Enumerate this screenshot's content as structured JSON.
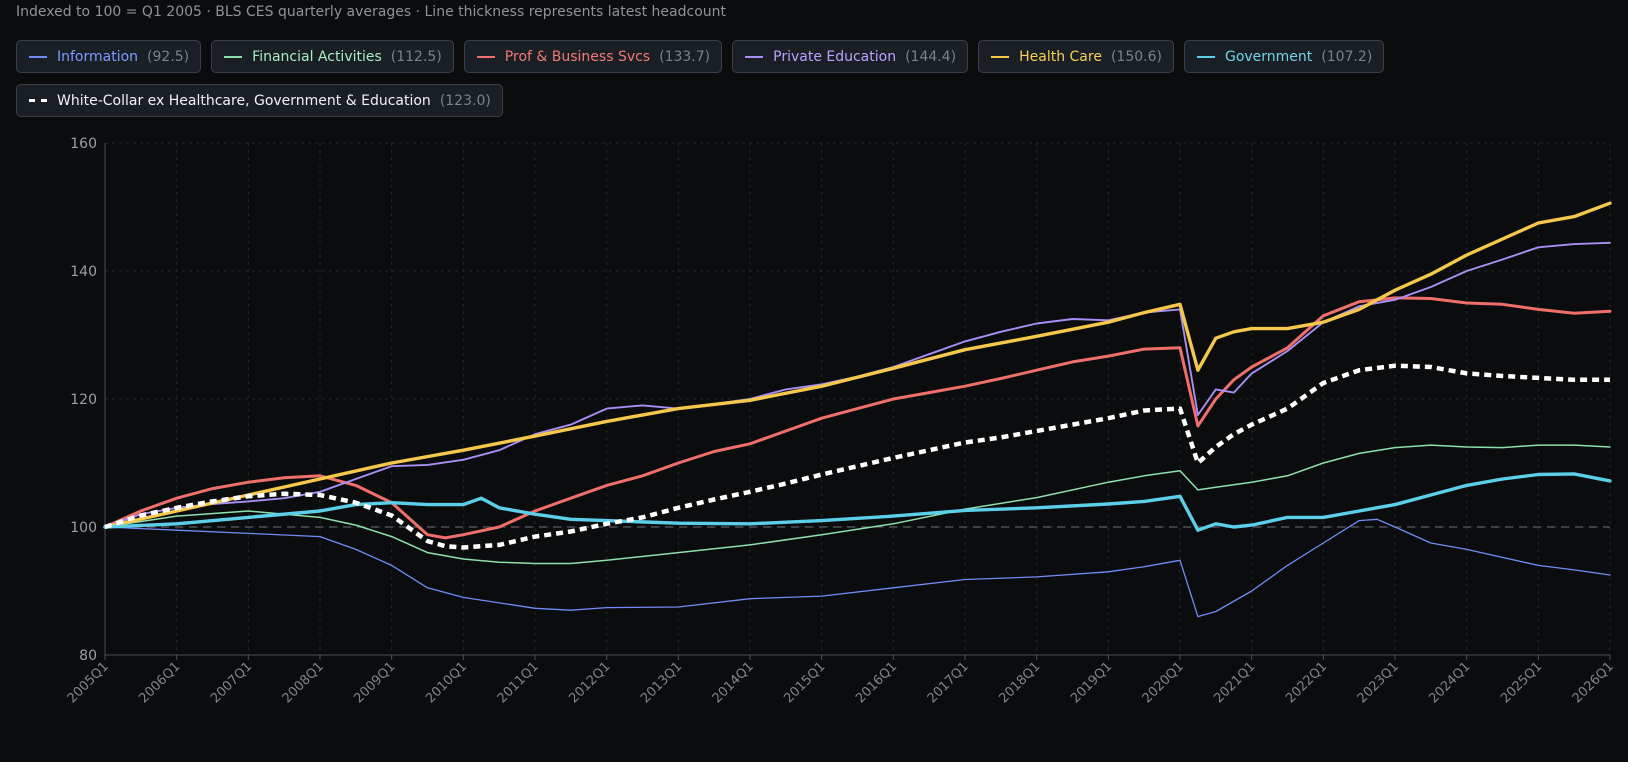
{
  "subtitle": "Indexed to 100 = Q1 2005 · BLS CES quarterly averages · Line thickness represents latest headcount",
  "legend": [
    {
      "label": "Information",
      "value": "(92.5)",
      "color": "#6f8df5",
      "dashed": false,
      "text_color": "#7d9bff"
    },
    {
      "label": "Financial Activities",
      "value": "(112.5)",
      "color": "#8ee0ad",
      "dashed": false,
      "text_color": "#a8ecc3"
    },
    {
      "label": "Prof & Business Svcs",
      "value": "(133.7)",
      "color": "#ef6f6a",
      "dashed": false,
      "text_color": "#f27a73"
    },
    {
      "label": "Private Education",
      "value": "(144.4)",
      "color": "#a88ef5",
      "dashed": false,
      "text_color": "#b9a3ff"
    },
    {
      "label": "Health Care",
      "value": "(150.6)",
      "color": "#f5c84c",
      "dashed": false,
      "text_color": "#f7cf52"
    },
    {
      "label": "Government",
      "value": "(107.2)",
      "color": "#5ccfe8",
      "dashed": false,
      "text_color": "#6fd5ec"
    },
    {
      "label": "White-Collar ex Healthcare, Government & Education",
      "value": "(123.0)",
      "color": "#ffffff",
      "dashed": true,
      "text_color": "#f0f2f5"
    }
  ],
  "chart_data": {
    "type": "line",
    "subtitle": "Indexed to 100 = Q1 2005 · BLS CES quarterly averages · Line thickness represents latest headcount",
    "ylim": [
      80,
      160
    ],
    "yticks": [
      80,
      100,
      120,
      140,
      160
    ],
    "xlim": [
      2005,
      2026
    ],
    "xticks": [
      "2005Q1",
      "2006Q1",
      "2007Q1",
      "2008Q1",
      "2009Q1",
      "2010Q1",
      "2011Q1",
      "2012Q1",
      "2013Q1",
      "2014Q1",
      "2015Q1",
      "2016Q1",
      "2017Q1",
      "2018Q1",
      "2019Q1",
      "2020Q1",
      "2021Q1",
      "2022Q1",
      "2023Q1",
      "2024Q1",
      "2025Q1",
      "2026Q1"
    ],
    "reference_line": 100,
    "grid": true,
    "series": [
      {
        "name": "Information",
        "color": "#6f8df5",
        "width": 1.3,
        "dashed": false,
        "points": [
          [
            2005,
            100
          ],
          [
            2006,
            99.5
          ],
          [
            2007,
            99
          ],
          [
            2008,
            98.5
          ],
          [
            2008.5,
            96.5
          ],
          [
            2009,
            94
          ],
          [
            2009.5,
            90.5
          ],
          [
            2010,
            89
          ],
          [
            2011,
            87.3
          ],
          [
            2011.5,
            87
          ],
          [
            2012,
            87.4
          ],
          [
            2013,
            87.5
          ],
          [
            2014,
            88.8
          ],
          [
            2015,
            89.2
          ],
          [
            2016,
            90.5
          ],
          [
            2017,
            91.8
          ],
          [
            2018,
            92.2
          ],
          [
            2019,
            93
          ],
          [
            2019.5,
            93.8
          ],
          [
            2020,
            94.8
          ],
          [
            2020.25,
            86
          ],
          [
            2020.5,
            86.8
          ],
          [
            2021,
            90
          ],
          [
            2021.5,
            94
          ],
          [
            2022,
            97.5
          ],
          [
            2022.5,
            101
          ],
          [
            2022.75,
            101.2
          ],
          [
            2023,
            100
          ],
          [
            2023.5,
            97.5
          ],
          [
            2024,
            96.5
          ],
          [
            2025,
            94
          ],
          [
            2025.5,
            93.3
          ],
          [
            2026,
            92.5
          ]
        ]
      },
      {
        "name": "Financial Activities",
        "color": "#8ee0ad",
        "width": 1.5,
        "dashed": false,
        "points": [
          [
            2005,
            100
          ],
          [
            2006,
            101.7
          ],
          [
            2007,
            102.5
          ],
          [
            2008,
            101.5
          ],
          [
            2008.5,
            100.3
          ],
          [
            2009,
            98.5
          ],
          [
            2009.5,
            96
          ],
          [
            2010,
            95
          ],
          [
            2010.5,
            94.5
          ],
          [
            2011,
            94.3
          ],
          [
            2011.5,
            94.3
          ],
          [
            2012,
            94.8
          ],
          [
            2013,
            96
          ],
          [
            2014,
            97.2
          ],
          [
            2015,
            98.8
          ],
          [
            2016,
            100.5
          ],
          [
            2017,
            102.8
          ],
          [
            2018,
            104.6
          ],
          [
            2019,
            107
          ],
          [
            2019.5,
            108
          ],
          [
            2020,
            108.8
          ],
          [
            2020.25,
            105.8
          ],
          [
            2020.5,
            106.2
          ],
          [
            2021,
            107
          ],
          [
            2021.5,
            108
          ],
          [
            2022,
            110
          ],
          [
            2022.5,
            111.5
          ],
          [
            2023,
            112.4
          ],
          [
            2023.5,
            112.8
          ],
          [
            2024,
            112.5
          ],
          [
            2024.5,
            112.4
          ],
          [
            2025,
            112.8
          ],
          [
            2025.5,
            112.8
          ],
          [
            2026,
            112.5
          ]
        ]
      },
      {
        "name": "Prof & Business Svcs",
        "color": "#ef6f6a",
        "width": 3.0,
        "dashed": false,
        "points": [
          [
            2005,
            100
          ],
          [
            2005.5,
            102.5
          ],
          [
            2006,
            104.5
          ],
          [
            2006.5,
            106
          ],
          [
            2007,
            107
          ],
          [
            2007.5,
            107.7
          ],
          [
            2008,
            108
          ],
          [
            2008.5,
            106.5
          ],
          [
            2009,
            103.8
          ],
          [
            2009.5,
            98.8
          ],
          [
            2009.75,
            98.3
          ],
          [
            2010,
            98.8
          ],
          [
            2010.5,
            100
          ],
          [
            2011,
            102.5
          ],
          [
            2011.5,
            104.5
          ],
          [
            2012,
            106.5
          ],
          [
            2012.5,
            108
          ],
          [
            2013,
            110
          ],
          [
            2013.5,
            111.8
          ],
          [
            2014,
            113
          ],
          [
            2014.5,
            115
          ],
          [
            2015,
            117
          ],
          [
            2015.5,
            118.5
          ],
          [
            2016,
            120
          ],
          [
            2016.5,
            121
          ],
          [
            2017,
            122
          ],
          [
            2017.5,
            123.2
          ],
          [
            2018,
            124.5
          ],
          [
            2018.5,
            125.8
          ],
          [
            2019,
            126.7
          ],
          [
            2019.5,
            127.8
          ],
          [
            2020,
            128
          ],
          [
            2020.25,
            115.8
          ],
          [
            2020.5,
            120
          ],
          [
            2020.75,
            123
          ],
          [
            2021,
            125
          ],
          [
            2021.5,
            128
          ],
          [
            2022,
            133
          ],
          [
            2022.5,
            135.2
          ],
          [
            2023,
            135.8
          ],
          [
            2023.5,
            135.7
          ],
          [
            2024,
            135
          ],
          [
            2024.5,
            134.8
          ],
          [
            2025,
            134
          ],
          [
            2025.5,
            133.4
          ],
          [
            2026,
            133.7
          ]
        ]
      },
      {
        "name": "Private Education",
        "color": "#a88ef5",
        "width": 1.9,
        "dashed": false,
        "points": [
          [
            2005,
            100
          ],
          [
            2005.5,
            102
          ],
          [
            2006,
            103
          ],
          [
            2006.5,
            103.6
          ],
          [
            2007,
            104
          ],
          [
            2007.5,
            104.5
          ],
          [
            2008,
            105.5
          ],
          [
            2008.5,
            107.5
          ],
          [
            2009,
            109.5
          ],
          [
            2009.5,
            109.7
          ],
          [
            2010,
            110.5
          ],
          [
            2010.5,
            112
          ],
          [
            2011,
            114.5
          ],
          [
            2011.5,
            116
          ],
          [
            2012,
            118.5
          ],
          [
            2012.5,
            119
          ],
          [
            2013,
            118.5
          ],
          [
            2013.5,
            119.2
          ],
          [
            2014,
            120
          ],
          [
            2014.5,
            121.5
          ],
          [
            2015,
            122.3
          ],
          [
            2015.5,
            123.5
          ],
          [
            2016,
            125
          ],
          [
            2016.5,
            127
          ],
          [
            2017,
            129
          ],
          [
            2017.5,
            130.5
          ],
          [
            2018,
            131.8
          ],
          [
            2018.5,
            132.5
          ],
          [
            2019,
            132.3
          ],
          [
            2019.5,
            133.5
          ],
          [
            2020,
            134
          ],
          [
            2020.25,
            117.5
          ],
          [
            2020.5,
            121.5
          ],
          [
            2020.75,
            121
          ],
          [
            2021,
            124
          ],
          [
            2021.5,
            127.5
          ],
          [
            2022,
            132
          ],
          [
            2022.5,
            134.5
          ],
          [
            2023,
            135.5
          ],
          [
            2023.5,
            137.5
          ],
          [
            2024,
            140
          ],
          [
            2024.5,
            141.8
          ],
          [
            2025,
            143.7
          ],
          [
            2025.5,
            144.2
          ],
          [
            2026,
            144.4
          ]
        ]
      },
      {
        "name": "Health Care",
        "color": "#f5c84c",
        "width": 3.4,
        "dashed": false,
        "points": [
          [
            2005,
            100
          ],
          [
            2006,
            102.5
          ],
          [
            2007,
            105
          ],
          [
            2008,
            107.5
          ],
          [
            2009,
            110
          ],
          [
            2010,
            112
          ],
          [
            2011,
            114.2
          ],
          [
            2012,
            116.5
          ],
          [
            2013,
            118.5
          ],
          [
            2014,
            119.8
          ],
          [
            2015,
            122
          ],
          [
            2016,
            124.8
          ],
          [
            2017,
            127.7
          ],
          [
            2018,
            129.8
          ],
          [
            2019,
            132
          ],
          [
            2019.5,
            133.5
          ],
          [
            2020,
            134.8
          ],
          [
            2020.25,
            124.5
          ],
          [
            2020.5,
            129.5
          ],
          [
            2020.75,
            130.5
          ],
          [
            2021,
            131
          ],
          [
            2021.5,
            131
          ],
          [
            2022,
            132
          ],
          [
            2022.5,
            134
          ],
          [
            2023,
            137
          ],
          [
            2023.5,
            139.5
          ],
          [
            2024,
            142.5
          ],
          [
            2024.5,
            145
          ],
          [
            2025,
            147.5
          ],
          [
            2025.5,
            148.5
          ],
          [
            2026,
            150.6
          ]
        ]
      },
      {
        "name": "Government",
        "color": "#5ccfe8",
        "width": 3.4,
        "dashed": false,
        "points": [
          [
            2005,
            100
          ],
          [
            2006,
            100.5
          ],
          [
            2007,
            101.5
          ],
          [
            2008,
            102.5
          ],
          [
            2008.5,
            103.5
          ],
          [
            2009,
            103.8
          ],
          [
            2009.5,
            103.5
          ],
          [
            2010,
            103.5
          ],
          [
            2010.25,
            104.5
          ],
          [
            2010.5,
            103
          ],
          [
            2011,
            102
          ],
          [
            2011.5,
            101.2
          ],
          [
            2012,
            101
          ],
          [
            2013,
            100.6
          ],
          [
            2014,
            100.5
          ],
          [
            2015,
            101
          ],
          [
            2016,
            101.7
          ],
          [
            2017,
            102.6
          ],
          [
            2018,
            103
          ],
          [
            2019,
            103.6
          ],
          [
            2019.5,
            104
          ],
          [
            2020,
            104.8
          ],
          [
            2020.25,
            99.5
          ],
          [
            2020.5,
            100.5
          ],
          [
            2020.75,
            100
          ],
          [
            2021,
            100.3
          ],
          [
            2021.5,
            101.5
          ],
          [
            2022,
            101.5
          ],
          [
            2022.5,
            102.5
          ],
          [
            2023,
            103.5
          ],
          [
            2023.5,
            105
          ],
          [
            2024,
            106.5
          ],
          [
            2024.5,
            107.5
          ],
          [
            2025,
            108.2
          ],
          [
            2025.5,
            108.3
          ],
          [
            2026,
            107.2
          ]
        ]
      },
      {
        "name": "White-Collar ex Healthcare, Government & Education",
        "color": "#ffffff",
        "width": 4.5,
        "dashed": true,
        "points": [
          [
            2005,
            100
          ],
          [
            2005.5,
            101.8
          ],
          [
            2006,
            103
          ],
          [
            2006.5,
            104
          ],
          [
            2007,
            104.8
          ],
          [
            2007.5,
            105.2
          ],
          [
            2008,
            105
          ],
          [
            2008.5,
            103.8
          ],
          [
            2009,
            101.8
          ],
          [
            2009.5,
            97.8
          ],
          [
            2009.75,
            97
          ],
          [
            2010,
            96.8
          ],
          [
            2010.5,
            97.2
          ],
          [
            2011,
            98.5
          ],
          [
            2011.5,
            99.3
          ],
          [
            2012,
            100.5
          ],
          [
            2012.5,
            101.5
          ],
          [
            2013,
            103
          ],
          [
            2013.5,
            104.3
          ],
          [
            2014,
            105.5
          ],
          [
            2014.5,
            106.8
          ],
          [
            2015,
            108.2
          ],
          [
            2015.5,
            109.5
          ],
          [
            2016,
            110.8
          ],
          [
            2016.5,
            112
          ],
          [
            2017,
            113.2
          ],
          [
            2017.5,
            114
          ],
          [
            2018,
            115
          ],
          [
            2018.5,
            116
          ],
          [
            2019,
            117
          ],
          [
            2019.5,
            118.2
          ],
          [
            2020,
            118.5
          ],
          [
            2020.25,
            110
          ],
          [
            2020.5,
            112.5
          ],
          [
            2020.75,
            114.5
          ],
          [
            2021,
            116
          ],
          [
            2021.5,
            118.5
          ],
          [
            2022,
            122.5
          ],
          [
            2022.5,
            124.5
          ],
          [
            2023,
            125.2
          ],
          [
            2023.5,
            125
          ],
          [
            2024,
            124
          ],
          [
            2024.5,
            123.6
          ],
          [
            2025,
            123.3
          ],
          [
            2025.5,
            123
          ],
          [
            2026,
            123
          ]
        ]
      }
    ]
  }
}
